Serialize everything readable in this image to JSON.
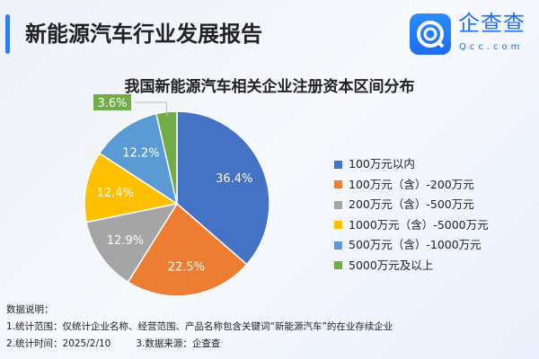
{
  "header": {
    "title": "新能源汽车行业发展报告",
    "logo_text": "企查查",
    "logo_sub": "Qcc.com"
  },
  "chart_data": {
    "type": "pie",
    "title": "我国新能源汽车相关企业注册资本区间分布",
    "categories": [
      "100万元以内",
      "100万元（含）-200万元",
      "200万元（含）-500万元",
      "1000万元（含）-5000万元",
      "500万元（含）-1000万元",
      "5000万元及以上"
    ],
    "values": [
      36.4,
      22.5,
      12.9,
      12.4,
      12.2,
      3.6
    ],
    "labels": [
      "36.4%",
      "22.5%",
      "12.9%",
      "12.4%",
      "12.2%",
      "3.6%"
    ],
    "colors": [
      "#4472c4",
      "#ed7d31",
      "#a5a5a5",
      "#ffc000",
      "#5b9bd5",
      "#70ad47"
    ],
    "legend_position": "right"
  },
  "notes": {
    "heading": "数据说明：",
    "line1": "1.统计范围：仅统计企业名称、经营范围、产品名称包含关键词“新能源汽车”的在业存续企业",
    "line2a": "2.统计时间：2025/2/10",
    "line2b": "3.数据来源：企查查"
  }
}
